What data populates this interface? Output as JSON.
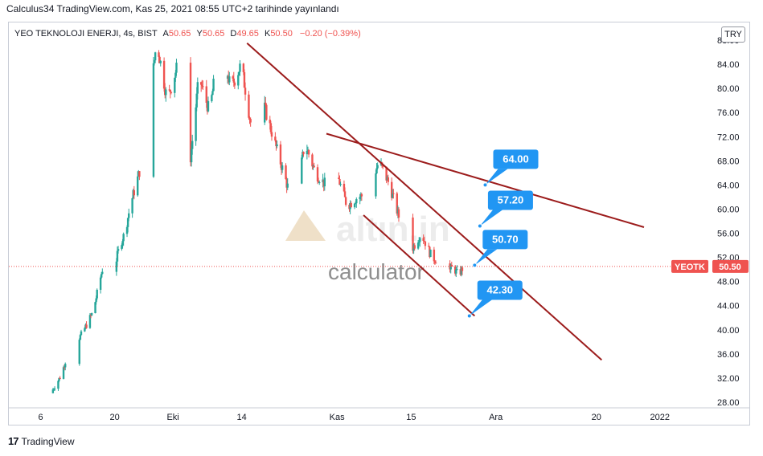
{
  "header": {
    "text": "Calculus34 TradingView.com, Kas 25, 2021 08:55 UTC+2 tarihinde yayınlandı"
  },
  "legend": {
    "symbol": "YEO TEKNOLOJI ENERJI, 4s, BIST",
    "open_label": "A",
    "open_value": "50.65",
    "high_label": "Y",
    "high_value": "50.65",
    "low_label": "D",
    "low_value": "49.65",
    "close_label": "K",
    "close_value": "50.50",
    "change": "−0.20 (−0.39%)"
  },
  "currency": "TRY",
  "price_tag": {
    "ticker": "YEOTK",
    "price": "50.50"
  },
  "footer": {
    "logo": "17",
    "text": "TradingView"
  },
  "watermark": {
    "brand": "altın.in",
    "sub": "calculator"
  },
  "colors": {
    "up": "#26a69a",
    "down": "#ef5350",
    "trendline": "#9c1c1c",
    "callout": "#2196f3",
    "tag": "#ef5350"
  },
  "chart_data": {
    "type": "candlestick",
    "y_axis": {
      "min": 28,
      "max": 88,
      "ticks": [
        "28.00",
        "32.00",
        "36.00",
        "40.00",
        "44.00",
        "48.00",
        "52.00",
        "56.00",
        "60.00",
        "64.00",
        "68.00",
        "72.00",
        "76.00",
        "80.00",
        "84.00",
        "88.00"
      ]
    },
    "x_axis": {
      "ticks": [
        "6",
        "20",
        "Eki",
        "14",
        "Kas",
        "15",
        "Ara",
        "20",
        "2022"
      ]
    },
    "x_tick_dates": [
      "2021-09-06",
      "2021-09-20",
      "2021-10-01",
      "2021-10-14",
      "2021-11-01",
      "2021-11-15",
      "2021-12-01",
      "2021-12-20",
      "2022-01-01"
    ],
    "x_range": [
      "2021-08-31",
      "2022-01-10"
    ],
    "current_price": 50.5,
    "price_path": [
      [
        "2021-09-08",
        29.5
      ],
      [
        "2021-09-10",
        32.5
      ],
      [
        "2021-09-11",
        35.5
      ],
      [
        "2021-09-14",
        39.5
      ],
      [
        "2021-09-16",
        43
      ],
      [
        "2021-09-17",
        47
      ],
      [
        "2021-09-18",
        51
      ],
      [
        "2021-09-19",
        55
      ],
      [
        "2021-09-20",
        50
      ],
      [
        "2021-09-21",
        54
      ],
      [
        "2021-09-22",
        56
      ],
      [
        "2021-09-23",
        60.5
      ],
      [
        "2021-09-25",
        67
      ],
      [
        "2021-09-27",
        80
      ],
      [
        "2021-09-28",
        88
      ],
      [
        "2021-09-30",
        78
      ],
      [
        "2021-10-02",
        84
      ],
      [
        "2021-10-03",
        74
      ],
      [
        "2021-10-04",
        65
      ],
      [
        "2021-10-06",
        82
      ],
      [
        "2021-10-08",
        76
      ],
      [
        "2021-10-10",
        88
      ],
      [
        "2021-10-12",
        80
      ],
      [
        "2021-10-14",
        84
      ],
      [
        "2021-10-16",
        73
      ],
      [
        "2021-10-18",
        78
      ],
      [
        "2021-10-20",
        72
      ],
      [
        "2021-10-22",
        66
      ],
      [
        "2021-10-24",
        60
      ],
      [
        "2021-10-26",
        71
      ],
      [
        "2021-10-28",
        66
      ],
      [
        "2021-10-30",
        64
      ],
      [
        "2021-11-01",
        66
      ],
      [
        "2021-11-03",
        60.5
      ],
      [
        "2021-11-05",
        62
      ],
      [
        "2021-11-07",
        62.5
      ],
      [
        "2021-11-09",
        68
      ],
      [
        "2021-11-11",
        64
      ],
      [
        "2021-11-13",
        58
      ],
      [
        "2021-11-15",
        53
      ],
      [
        "2021-11-17",
        56
      ],
      [
        "2021-11-19",
        52
      ],
      [
        "2021-11-21",
        51
      ],
      [
        "2021-11-22",
        49.5
      ],
      [
        "2021-11-23",
        50.5
      ],
      [
        "2021-11-24",
        49
      ],
      [
        "2021-11-25",
        50.5
      ]
    ],
    "trendlines": [
      {
        "from": [
          "2021-10-15",
          87.5
        ],
        "to": [
          "2021-12-21",
          35
        ]
      },
      {
        "from": [
          "2021-10-30",
          72.5
        ],
        "to": [
          "2021-12-29",
          57
        ]
      },
      {
        "from": [
          "2021-11-06",
          59
        ],
        "to": [
          "2021-11-27",
          42.3
        ]
      }
    ],
    "annotations": [
      {
        "label": "64.00",
        "anchor": [
          "2021-11-29",
          64
        ]
      },
      {
        "label": "57.20",
        "anchor": [
          "2021-11-28",
          57.2
        ]
      },
      {
        "label": "50.70",
        "anchor": [
          "2021-11-27",
          50.7
        ]
      },
      {
        "label": "42.30",
        "anchor": [
          "2021-11-26",
          42.3
        ]
      }
    ]
  }
}
